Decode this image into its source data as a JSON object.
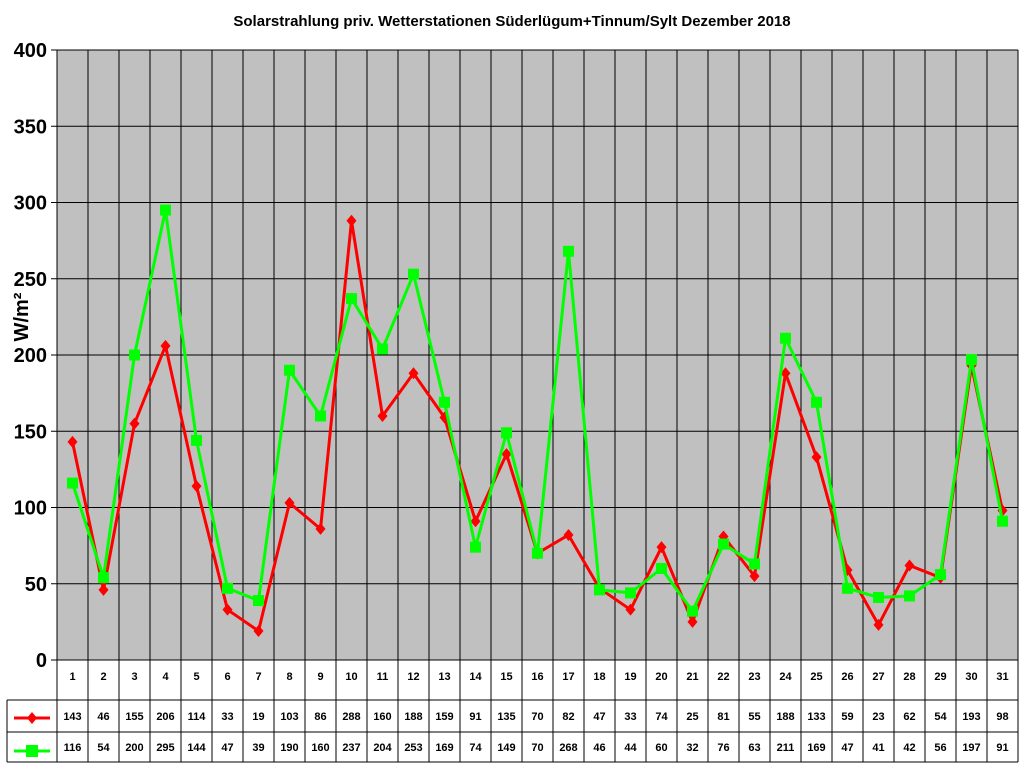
{
  "chart_data": {
    "type": "line",
    "title": "Solarstrahlung priv. Wetterstationen Süderlügum+Tinnum/Sylt Dezember 2018",
    "xlabel": "",
    "ylabel": "W/m²",
    "ylim": [
      0,
      400
    ],
    "yticks": [
      0,
      50,
      100,
      150,
      200,
      250,
      300,
      350,
      400
    ],
    "grid": true,
    "legend": "data-table-left",
    "categories": [
      "1",
      "2",
      "3",
      "4",
      "5",
      "6",
      "7",
      "8",
      "9",
      "10",
      "11",
      "12",
      "13",
      "14",
      "15",
      "16",
      "17",
      "18",
      "19",
      "20",
      "21",
      "22",
      "23",
      "24",
      "25",
      "26",
      "27",
      "28",
      "29",
      "30",
      "31"
    ],
    "series": [
      {
        "color": "#ff0000",
        "marker": "diamond",
        "values": [
          143,
          46,
          155,
          206,
          114,
          33,
          19,
          103,
          86,
          288,
          160,
          188,
          159,
          91,
          135,
          70,
          82,
          47,
          33,
          74,
          25,
          81,
          55,
          188,
          133,
          59,
          23,
          62,
          54,
          193,
          98
        ]
      },
      {
        "color": "#00ff00",
        "marker": "square",
        "values": [
          116,
          54,
          200,
          295,
          144,
          47,
          39,
          190,
          160,
          237,
          204,
          253,
          169,
          74,
          149,
          70,
          268,
          46,
          44,
          60,
          32,
          76,
          63,
          211,
          169,
          47,
          41,
          42,
          56,
          197,
          91
        ]
      }
    ],
    "plot_background": "#c0c0c0"
  }
}
